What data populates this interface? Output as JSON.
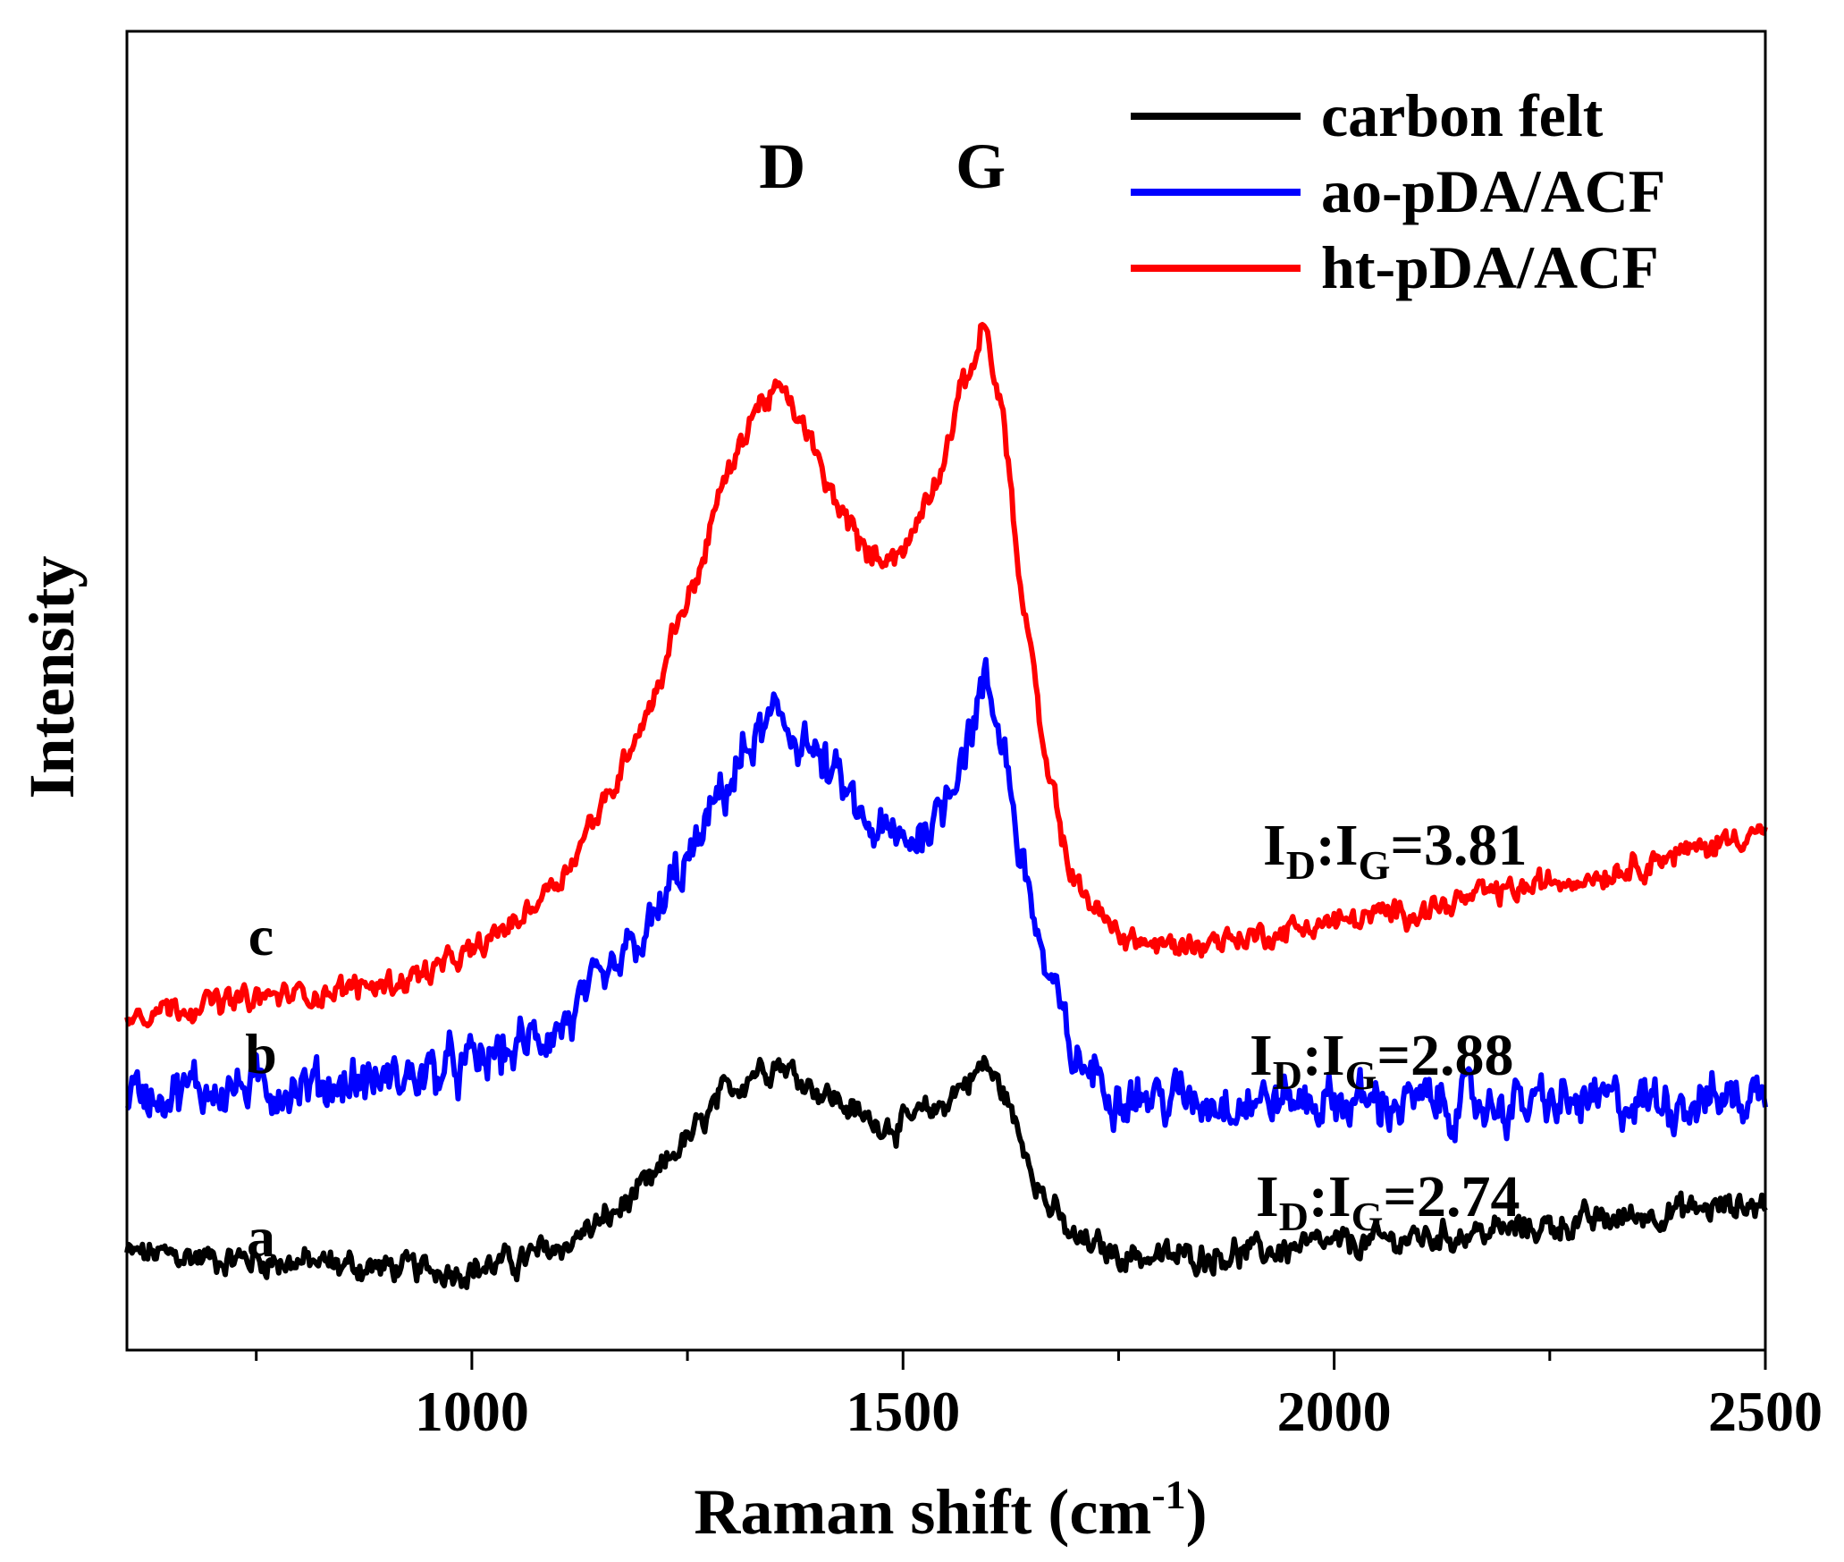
{
  "chart_data": {
    "type": "line",
    "title": "",
    "xlabel": "Raman shift (cm",
    "xlabel_sup": "-1",
    "xlabel_close": ")",
    "ylabel": "Intensity",
    "xlim": [
      600,
      2500
    ],
    "ylim": [
      0,
      1
    ],
    "x_ticks": [
      1000,
      1500,
      2000,
      2500
    ],
    "x_tick_labels": [
      "1000",
      "1500",
      "2000",
      "2500"
    ],
    "x_minor_ticks": [
      750,
      1250,
      1750,
      2250
    ],
    "y_ticks_shown": false,
    "grid": false,
    "legend_position": "top-right",
    "annotations": {
      "D": {
        "text": "D",
        "x": 1360
      },
      "G": {
        "text": "G",
        "x": 1590
      }
    },
    "series": [
      {
        "name": "carbon felt",
        "letter": "a",
        "color": "#000000",
        "ratio": {
          "I1": "I",
          "sub1": "D",
          "sep": ":",
          "I2": "I",
          "sub2": "G",
          "value": "=2.74"
        },
        "x": [
          600,
          700,
          800,
          900,
          950,
          1000,
          1050,
          1100,
          1150,
          1200,
          1250,
          1300,
          1330,
          1355,
          1380,
          1420,
          1460,
          1500,
          1540,
          1570,
          1595,
          1615,
          1640,
          1670,
          1700,
          1750,
          1800,
          1900,
          2000,
          2100,
          2200,
          2300,
          2400,
          2500
        ],
        "values": [
          0.063,
          0.06,
          0.056,
          0.052,
          0.05,
          0.051,
          0.057,
          0.068,
          0.088,
          0.115,
          0.155,
          0.195,
          0.212,
          0.218,
          0.205,
          0.188,
          0.17,
          0.167,
          0.18,
          0.2,
          0.215,
          0.195,
          0.15,
          0.1,
          0.073,
          0.063,
          0.06,
          0.064,
          0.07,
          0.076,
          0.082,
          0.089,
          0.098,
          0.103
        ],
        "noise": 0.008
      },
      {
        "name": "ao-pDA/ACF",
        "letter": "b",
        "color": "#0000ff",
        "ratio": {
          "I1": "I",
          "sub1": "D",
          "sep": ":",
          "I2": "I",
          "sub2": "G",
          "value": "=2.88"
        },
        "x": [
          600,
          700,
          800,
          900,
          950,
          1000,
          1050,
          1100,
          1150,
          1200,
          1250,
          1300,
          1330,
          1355,
          1380,
          1420,
          1460,
          1500,
          1540,
          1570,
          1595,
          1615,
          1640,
          1670,
          1700,
          1750,
          1800,
          1900,
          2000,
          2100,
          2200,
          2300,
          2400,
          2500
        ],
        "values": [
          0.193,
          0.196,
          0.198,
          0.203,
          0.208,
          0.215,
          0.228,
          0.245,
          0.275,
          0.318,
          0.378,
          0.445,
          0.478,
          0.492,
          0.48,
          0.445,
          0.405,
          0.393,
          0.415,
          0.47,
          0.52,
          0.48,
          0.37,
          0.28,
          0.218,
          0.195,
          0.188,
          0.187,
          0.186,
          0.184,
          0.183,
          0.184,
          0.187,
          0.19
        ],
        "noise": 0.014
      },
      {
        "name": "ht-pDA/ACF",
        "letter": "c",
        "color": "#ff0000",
        "ratio": {
          "I1": "I",
          "sub1": "D",
          "sep": ":",
          "I2": "I",
          "sub2": "G",
          "value": "=3.81"
        },
        "x": [
          600,
          700,
          800,
          900,
          950,
          1000,
          1050,
          1100,
          1150,
          1200,
          1250,
          1300,
          1330,
          1355,
          1380,
          1420,
          1460,
          1500,
          1540,
          1570,
          1595,
          1615,
          1640,
          1670,
          1700,
          1750,
          1800,
          1900,
          2000,
          2100,
          2200,
          2300,
          2400,
          2500
        ],
        "values": [
          0.258,
          0.265,
          0.272,
          0.28,
          0.29,
          0.305,
          0.33,
          0.365,
          0.42,
          0.495,
          0.59,
          0.695,
          0.745,
          0.758,
          0.735,
          0.67,
          0.625,
          0.628,
          0.69,
          0.76,
          0.81,
          0.74,
          0.58,
          0.44,
          0.36,
          0.32,
          0.31,
          0.318,
          0.33,
          0.34,
          0.355,
          0.368,
          0.385,
          0.405
        ],
        "noise": 0.007
      }
    ]
  }
}
